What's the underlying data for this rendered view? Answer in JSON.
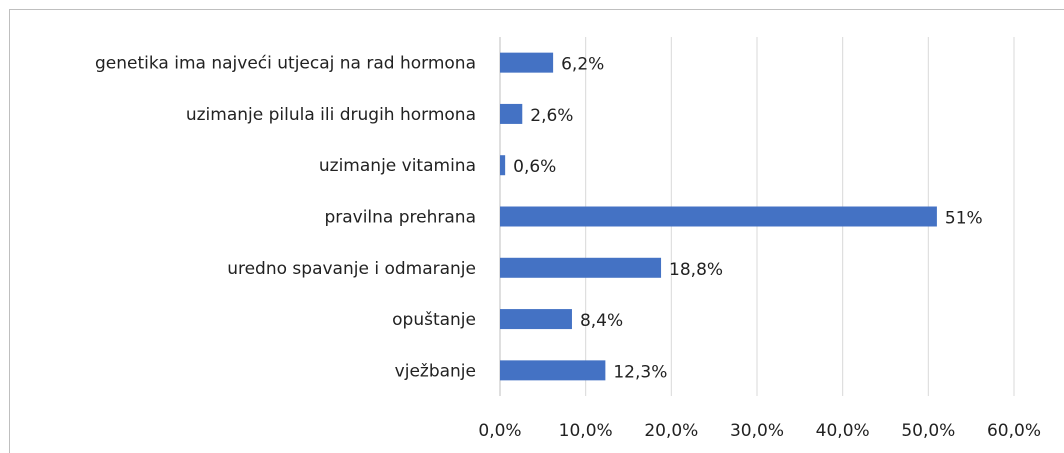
{
  "chart_data": {
    "type": "barh",
    "categories": [
      "genetika ima najveći utjecaj na rad hormona",
      "uzimanje pilula ili drugih hormona",
      "uzimanje vitamina",
      "pravilna prehrana",
      "uredno spavanje i odmaranje",
      "opuštanje",
      "vježbanje"
    ],
    "values": [
      6.2,
      2.6,
      0.6,
      51,
      18.8,
      8.4,
      12.3
    ],
    "value_labels": [
      "6,2%",
      "2,6%",
      "0,6%",
      "51%",
      "18,8%",
      "8,4%",
      "12,3%"
    ],
    "color": "#4472c4",
    "xlim": [
      0,
      60
    ],
    "xticks": [
      {
        "value": 0,
        "label": "0,0%"
      },
      {
        "value": 10,
        "label": "10,0%"
      },
      {
        "value": 20,
        "label": "20,0%"
      },
      {
        "value": 30,
        "label": "30,0%"
      },
      {
        "value": 40,
        "label": "40,0%"
      },
      {
        "value": 50,
        "label": "50,0%"
      },
      {
        "value": 60,
        "label": "60,0%"
      }
    ],
    "grid": true
  }
}
